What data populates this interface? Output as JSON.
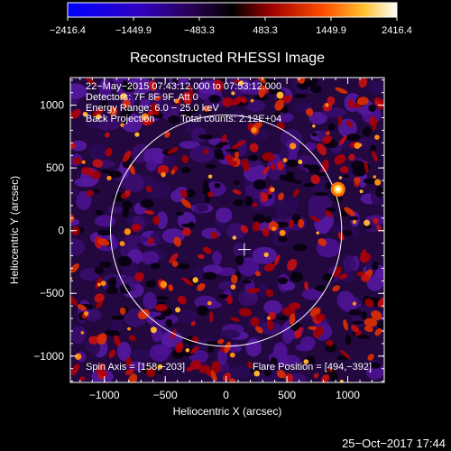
{
  "chart_data": {
    "type": "heatmap",
    "title": "Reconstructed RHESSI Image",
    "xlabel": "Heliocentric X (arcsec)",
    "ylabel": "Heliocentric Y (arcsec)",
    "xlim": [
      -1280,
      1300
    ],
    "ylim": [
      -1210,
      1220
    ],
    "x_ticks": [
      -1000,
      -500,
      0,
      500,
      1000
    ],
    "x_tick_labels": [
      "−1000",
      "−500",
      "0",
      "500",
      "1000"
    ],
    "y_ticks": [
      1000,
      500,
      0,
      -500,
      -1000
    ],
    "y_tick_labels": [
      "1000",
      "500",
      "0",
      "−500",
      "−1000"
    ],
    "colorbar": {
      "ticks": [
        -2416.4,
        -1449.9,
        -483.3,
        483.3,
        1449.9,
        2416.4
      ],
      "tick_labels": [
        "−2416.4",
        "−1449.9",
        "−483.3",
        "483.3",
        "1449.9",
        "2416.4"
      ],
      "colors": [
        "#0000ff",
        "#4a0090",
        "#000000",
        "#b00000",
        "#ff6000",
        "#ffd040",
        "#ffffff"
      ]
    },
    "annotations": {
      "line1": "22−May−2015 07:43:12.000 to 07:53:12.000",
      "line2": "Detectors: 7F 8F 9F, Att 0",
      "line3": "Energy Range: 6.0 − 25.0 keV",
      "line4_left": "Back Projection",
      "line4_right": "Total counts: 2.12E+04",
      "spin_axis": "Spin Axis = [158,−203]",
      "flare_position": "Flare Position = [494,−392]"
    },
    "solar_disk": {
      "center": [
        0,
        0
      ],
      "radius_arcsec": 950,
      "color": "#ffffff"
    },
    "center_marker": {
      "x": 150,
      "y": -150
    },
    "hot_spot": {
      "x": 920,
      "y": 330
    },
    "date_stamp": "25−Oct−2017 17:44"
  }
}
